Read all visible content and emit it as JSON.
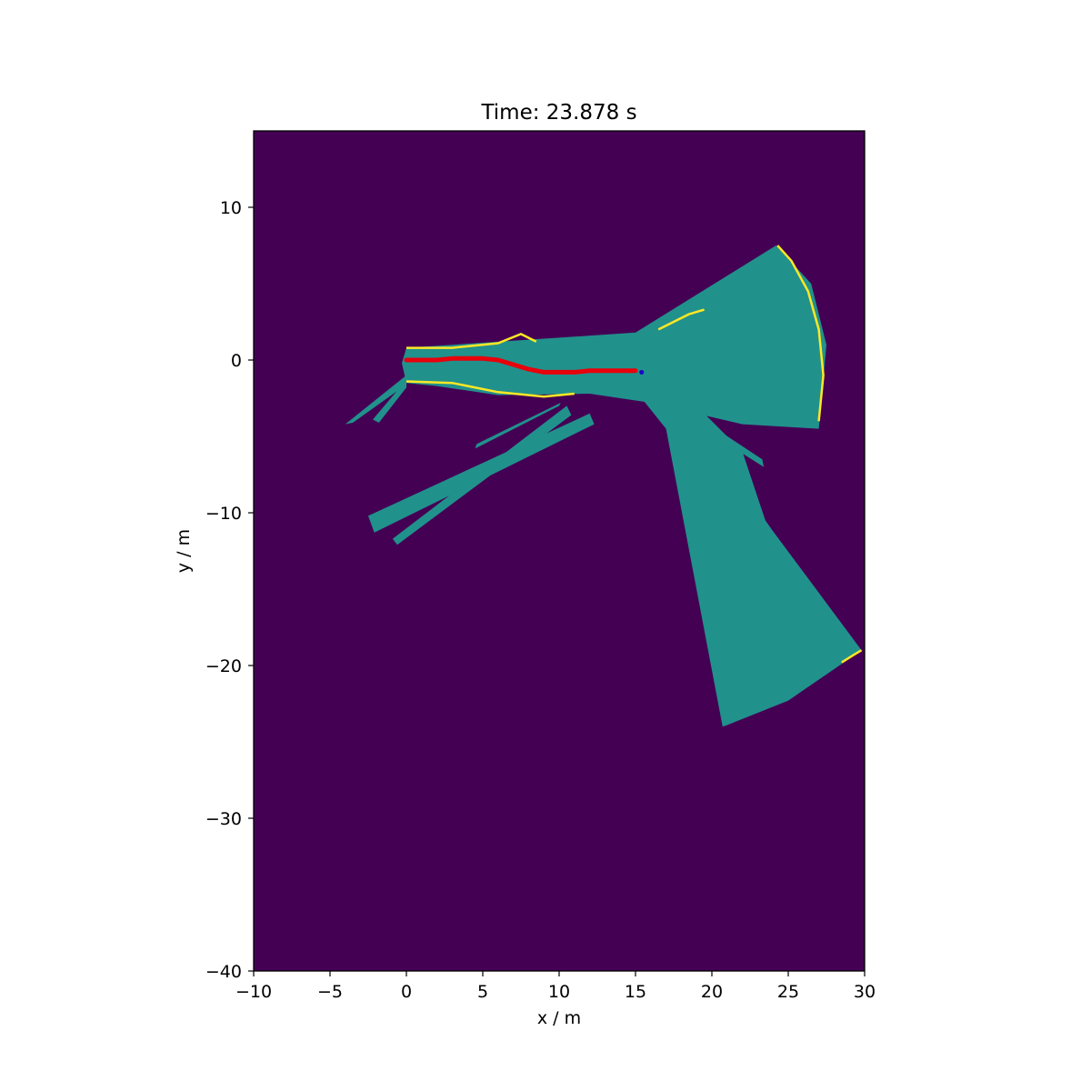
{
  "chart_data": {
    "type": "heatmap",
    "title": "Time: 23.878 s",
    "xlabel": "x / m",
    "ylabel": "y / m",
    "xlim": [
      -10,
      30
    ],
    "ylim": [
      -40,
      15
    ],
    "x_ticks": [
      -10,
      -5,
      0,
      5,
      10,
      15,
      20,
      25,
      30
    ],
    "y_ticks": [
      -40,
      -30,
      -20,
      -10,
      0,
      10
    ],
    "x_tick_labels": [
      "−10",
      "−5",
      "0",
      "5",
      "10",
      "15",
      "20",
      "25",
      "30"
    ],
    "y_tick_labels": [
      "−40",
      "−30",
      "−20",
      "−10",
      "0",
      "10"
    ],
    "grid": false,
    "colors": {
      "unknown": "#440154",
      "free": "#21918c",
      "occupied": "#fde725",
      "trajectory": "#e8000b",
      "robot_marker": "#1f00c8"
    },
    "free_regions": [
      {
        "name": "forward-fan",
        "points": [
          [
            0,
            0.8
          ],
          [
            15,
            1.8
          ],
          [
            24.2,
            7.5
          ],
          [
            26.5,
            5
          ],
          [
            27.5,
            1
          ],
          [
            27,
            -4.5
          ],
          [
            22,
            -4.2
          ],
          [
            16,
            -2.8
          ],
          [
            12,
            -2.2
          ],
          [
            6,
            -2.3
          ],
          [
            2,
            -1.7
          ],
          [
            0,
            -1.5
          ],
          [
            -0.3,
            -0.2
          ]
        ]
      },
      {
        "name": "left-ray-a",
        "points": [
          [
            0,
            -1
          ],
          [
            -4,
            -4.2
          ],
          [
            -3.5,
            -4.1
          ],
          [
            0,
            -1.6
          ]
        ]
      },
      {
        "name": "left-ray-b",
        "points": [
          [
            0,
            -1.3
          ],
          [
            -2.2,
            -3.9
          ],
          [
            -1.8,
            -4.1
          ],
          [
            0,
            -1.8
          ]
        ]
      },
      {
        "name": "beam-southwest-wide",
        "points": [
          [
            12,
            -3.5
          ],
          [
            -2.5,
            -10.2
          ],
          [
            -2.1,
            -11.3
          ],
          [
            12.3,
            -4.2
          ]
        ]
      },
      {
        "name": "beam-southwest-narrow",
        "points": [
          [
            10.5,
            -3
          ],
          [
            -0.9,
            -11.7
          ],
          [
            -0.6,
            -12.1
          ],
          [
            10.8,
            -3.6
          ]
        ]
      },
      {
        "name": "beam-west-thin",
        "points": [
          [
            10,
            -3
          ],
          [
            4.5,
            -5.8
          ],
          [
            4.6,
            -5.5
          ],
          [
            10.1,
            -2.8
          ]
        ]
      },
      {
        "name": "beam-east",
        "points": [
          [
            18,
            -3
          ],
          [
            23.3,
            -6.5
          ],
          [
            23.4,
            -7
          ],
          [
            18,
            -3.6
          ]
        ]
      },
      {
        "name": "south-fan",
        "points": [
          [
            15,
            -2
          ],
          [
            18,
            -2
          ],
          [
            22,
            -6
          ],
          [
            23.5,
            -10.5
          ],
          [
            24,
            -11.2
          ],
          [
            29.8,
            -19
          ],
          [
            25,
            -22.3
          ],
          [
            21,
            -23.9
          ],
          [
            20.7,
            -24
          ],
          [
            17,
            -4.5
          ]
        ]
      }
    ],
    "occupied_edges": [
      {
        "name": "fan-rim",
        "points": [
          [
            24.3,
            7.5
          ],
          [
            25.2,
            6.5
          ],
          [
            26.3,
            4.5
          ],
          [
            27,
            2
          ],
          [
            27.3,
            -1
          ],
          [
            27,
            -4
          ]
        ]
      },
      {
        "name": "upper-left-edge",
        "points": [
          [
            0,
            0.8
          ],
          [
            3,
            0.8
          ],
          [
            6,
            1.1
          ],
          [
            7.5,
            1.7
          ],
          [
            8.5,
            1.2
          ]
        ]
      },
      {
        "name": "upper-mid-edge",
        "points": [
          [
            16.5,
            2
          ],
          [
            18.5,
            3
          ],
          [
            19.5,
            3.3
          ]
        ]
      },
      {
        "name": "lower-left-edge",
        "points": [
          [
            0,
            -1.4
          ],
          [
            3,
            -1.5
          ],
          [
            6,
            -2.1
          ],
          [
            9,
            -2.4
          ],
          [
            11,
            -2.2
          ]
        ]
      },
      {
        "name": "south-tip-edge",
        "points": [
          [
            28.5,
            -19.8
          ],
          [
            29.3,
            -19.3
          ],
          [
            29.8,
            -19
          ]
        ]
      }
    ],
    "series": [
      {
        "name": "",
        "x": [
          0,
          1,
          2,
          3,
          4,
          5,
          6,
          7,
          8,
          9,
          10,
          11,
          12,
          13,
          14,
          15
        ],
        "y": [
          0.0,
          0.0,
          0.0,
          0.1,
          0.1,
          0.1,
          0.0,
          -0.3,
          -0.6,
          -0.8,
          -0.8,
          -0.8,
          -0.7,
          -0.7,
          -0.7,
          -0.7
        ]
      }
    ],
    "robot_position": [
      15.4,
      -0.8
    ]
  }
}
